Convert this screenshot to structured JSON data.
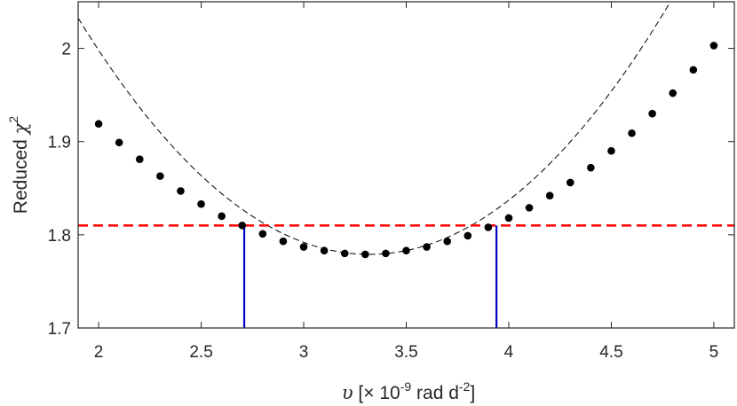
{
  "chart_data": {
    "type": "scatter",
    "xlabel_prefix": "υ",
    "xlabel_main": " [× 10",
    "xlabel_exp": "-9",
    "xlabel_unit": " rad d",
    "xlabel_unit_exp": "-2",
    "xlabel_close": "]",
    "ylabel_main": "Reduced ",
    "ylabel_chi": "χ",
    "ylabel_exp": "2",
    "xlim": [
      1.9,
      5.1
    ],
    "ylim": [
      1.7,
      2.05
    ],
    "xticks": [
      2,
      2.5,
      3,
      3.5,
      4,
      4.5,
      5
    ],
    "xtick_labels": [
      "2",
      "2.5",
      "3",
      "3.5",
      "4",
      "4.5",
      "5"
    ],
    "yticks": [
      1.7,
      1.8,
      1.9,
      2.0
    ],
    "ytick_labels": [
      "1.7",
      "1.8",
      "1.9",
      "2"
    ],
    "grid": false,
    "series": [
      {
        "kind": "points",
        "color": "#000000",
        "x": [
          2.0,
          2.1,
          2.2,
          2.3,
          2.4,
          2.5,
          2.6,
          2.7,
          2.8,
          2.9,
          3.0,
          3.1,
          3.2,
          3.3,
          3.4,
          3.5,
          3.6,
          3.7,
          3.8,
          3.9,
          4.0,
          4.1,
          4.2,
          4.3,
          4.4,
          4.5,
          4.6,
          4.7,
          4.8,
          4.9,
          5.0
        ],
        "y": [
          1.919,
          1.899,
          1.881,
          1.863,
          1.847,
          1.833,
          1.82,
          1.81,
          1.801,
          1.793,
          1.787,
          1.783,
          1.78,
          1.779,
          1.78,
          1.783,
          1.787,
          1.793,
          1.799,
          1.808,
          1.818,
          1.829,
          1.842,
          1.856,
          1.872,
          1.89,
          1.909,
          1.93,
          1.952,
          1.977,
          2.003
        ]
      },
      {
        "kind": "fit-curve",
        "color": "#000000",
        "style": "dashed",
        "vertex_x": 3.32,
        "vertex_y": 1.779,
        "coef_a": 0.1257
      },
      {
        "kind": "threshold-line",
        "color": "#ff0000",
        "style": "dashed",
        "y": 1.81
      },
      {
        "kind": "vertical-markers",
        "color": "#0000cc",
        "x": [
          2.71,
          3.94
        ],
        "y_top": 1.81
      }
    ]
  }
}
